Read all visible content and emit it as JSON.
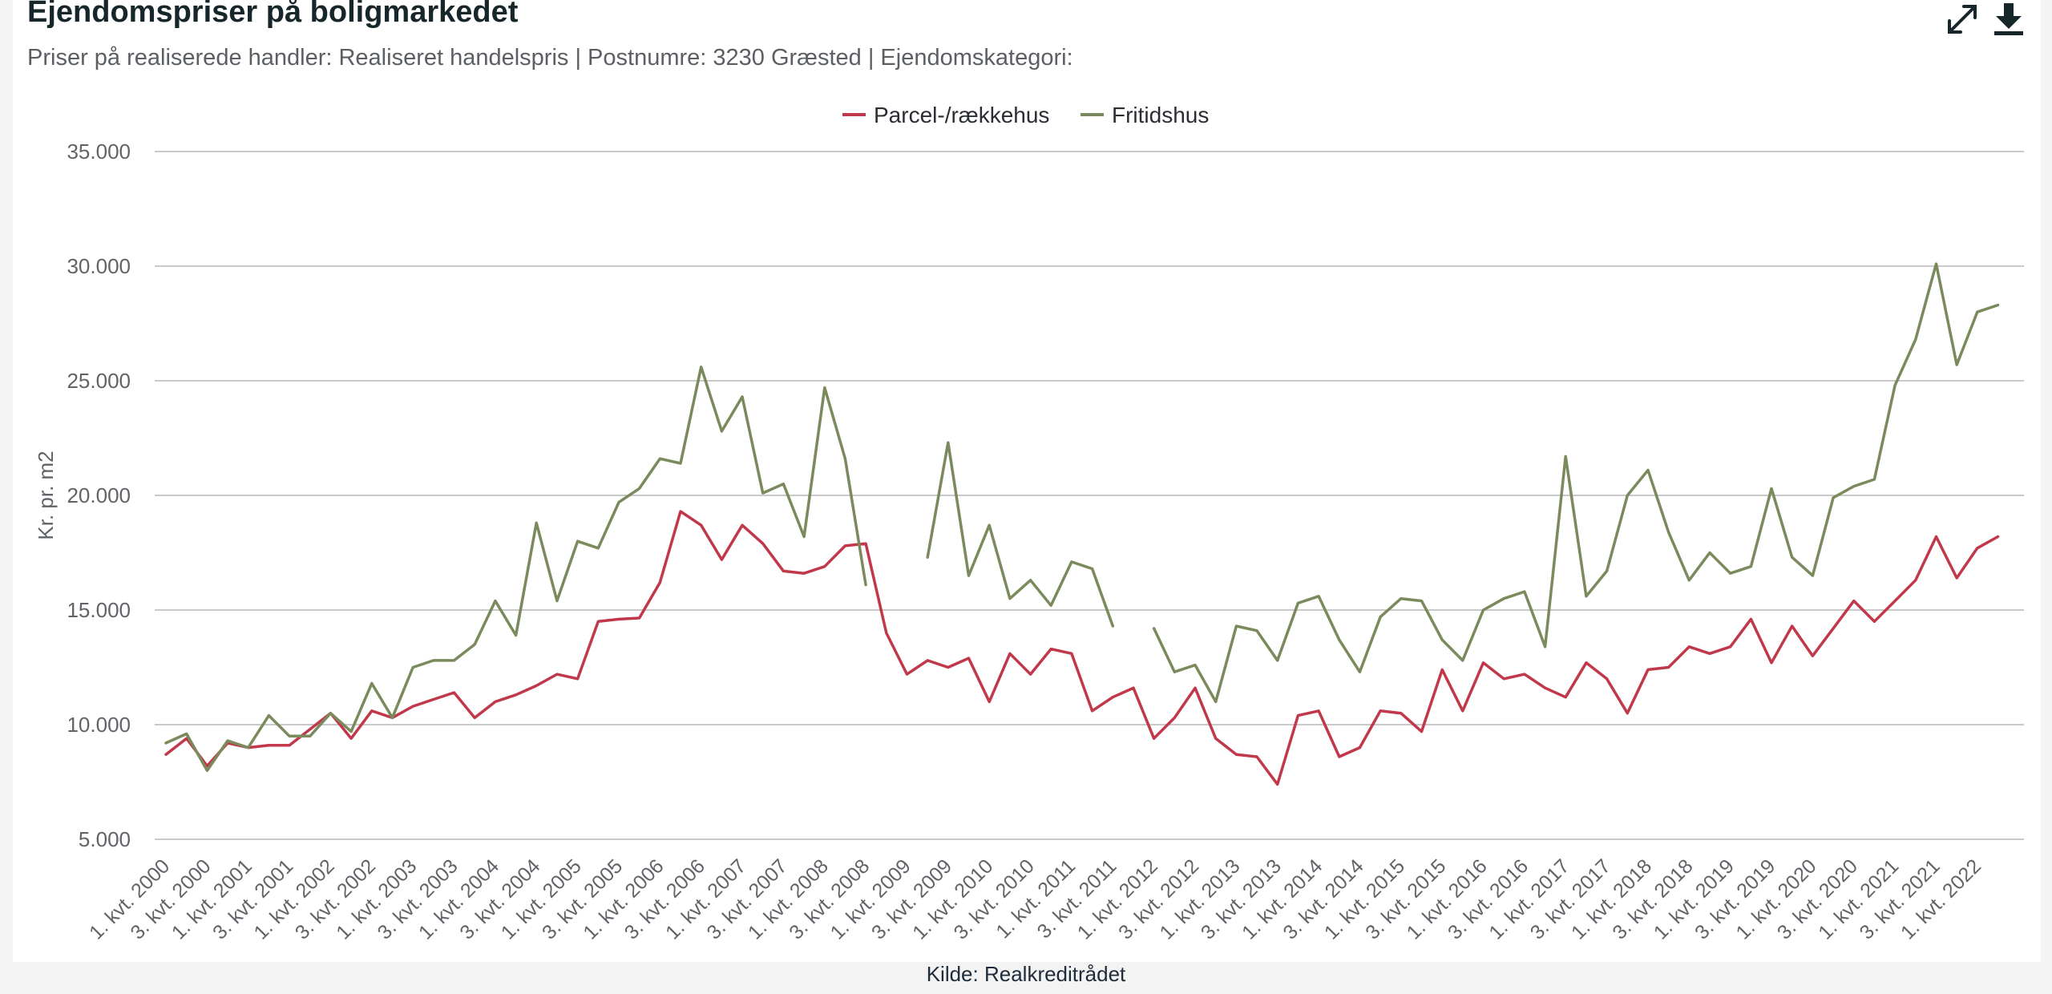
{
  "header": {
    "title": "Ejendomspriser på boligmarkedet",
    "subtitle": "Priser på realiserede handler: Realiseret handelspris | Postnumre: 3230 Græsted | Ejendomskategori:"
  },
  "toolbar": {
    "expand_icon": "expand-arrows-icon",
    "download_icon": "download-icon"
  },
  "footer": {
    "source": "Kilde: Realkreditrådet"
  },
  "colors": {
    "parcel": "#c0384a",
    "fritid": "#7a8a5c",
    "grid": "#c9c9c9",
    "axis_text": "#606468"
  },
  "chart_data": {
    "type": "line",
    "title": "Ejendomspriser på boligmarkedet",
    "ylabel": "Kr. pr. m2",
    "xlabel": "",
    "ylim": [
      5000,
      35000
    ],
    "yticks": [
      "5.000",
      "10.000",
      "15.000",
      "20.000",
      "25.000",
      "30.000",
      "35.000"
    ],
    "ytick_values": [
      5000,
      10000,
      15000,
      20000,
      25000,
      30000,
      35000
    ],
    "grid": true,
    "legend": "top-center",
    "x_tick_labels": [
      "1. kvt. 2000",
      "3. kvt. 2000",
      "1. kvt. 2001",
      "3. kvt. 2001",
      "1. kvt. 2002",
      "3. kvt. 2002",
      "1. kvt. 2003",
      "3. kvt. 2003",
      "1. kvt. 2004",
      "3. kvt. 2004",
      "1. kvt. 2005",
      "3. kvt. 2005",
      "1. kvt. 2006",
      "3. kvt. 2006",
      "1. kvt. 2007",
      "3. kvt. 2007",
      "1. kvt. 2008",
      "3. kvt. 2008",
      "1. kvt. 2009",
      "3. kvt. 2009",
      "1. kvt. 2010",
      "3. kvt. 2010",
      "1. kvt. 2011",
      "3. kvt. 2011",
      "1. kvt. 2012",
      "3. kvt. 2012",
      "1. kvt. 2013",
      "3. kvt. 2013",
      "1. kvt. 2014",
      "3. kvt. 2014",
      "1. kvt. 2015",
      "3. kvt. 2015",
      "1. kvt. 2016",
      "3. kvt. 2016",
      "1. kvt. 2017",
      "3. kvt. 2017",
      "1. kvt. 2018",
      "3. kvt. 2018",
      "1. kvt. 2019",
      "3. kvt. 2019",
      "1. kvt. 2020",
      "3. kvt. 2020",
      "1. kvt. 2021",
      "3. kvt. 2021",
      "1. kvt. 2022"
    ],
    "series": [
      {
        "name": "Parcel-/rækkehus",
        "color": "#c0384a",
        "values": [
          8700,
          9400,
          8200,
          9200,
          9000,
          9100,
          9100,
          9800,
          10500,
          9400,
          10600,
          10300,
          10800,
          11100,
          11400,
          10300,
          11000,
          11300,
          11700,
          12200,
          12000,
          14500,
          14600,
          14650,
          16200,
          19300,
          18700,
          17200,
          18700,
          17900,
          16700,
          16600,
          16900,
          17800,
          17900,
          14000,
          12200,
          12800,
          12500,
          12900,
          11000,
          13100,
          12200,
          13300,
          13100,
          10600,
          11200,
          11600,
          9400,
          10300,
          11600,
          9400,
          8700,
          8600,
          7400,
          10400,
          10600,
          8600,
          9000,
          10600,
          10500,
          9700,
          12400,
          10600,
          12700,
          12000,
          12200,
          11600,
          11200,
          12700,
          12000,
          10500,
          12400,
          12500,
          13400,
          13100,
          13400,
          14600,
          12700,
          14300,
          13000,
          14200,
          15400,
          14500,
          15400,
          16300,
          18200,
          16400,
          17700,
          18200
        ]
      },
      {
        "name": "Fritidshus",
        "color": "#7a8a5c",
        "values": [
          9200,
          9600,
          8000,
          9300,
          9000,
          10400,
          9500,
          9500,
          10500,
          9700,
          11800,
          10300,
          12500,
          12800,
          12800,
          13500,
          15400,
          13900,
          18800,
          15400,
          18000,
          17700,
          19700,
          20300,
          21600,
          21400,
          25600,
          22800,
          24300,
          20100,
          20500,
          18200,
          24700,
          21600,
          16100,
          null,
          null,
          17300,
          22300,
          16500,
          18700,
          15500,
          16300,
          15200,
          17100,
          16800,
          14300,
          null,
          14200,
          12300,
          12600,
          11000,
          14300,
          14100,
          12800,
          15300,
          15600,
          13700,
          12300,
          14700,
          15500,
          15400,
          13700,
          12800,
          15000,
          15500,
          15800,
          13400,
          21700,
          15600,
          16700,
          20000,
          21100,
          18400,
          16300,
          17500,
          16600,
          16900,
          20300,
          17300,
          16500,
          19900,
          20400,
          20700,
          24800,
          26800,
          30100,
          25700,
          28000,
          28300
        ]
      }
    ]
  }
}
